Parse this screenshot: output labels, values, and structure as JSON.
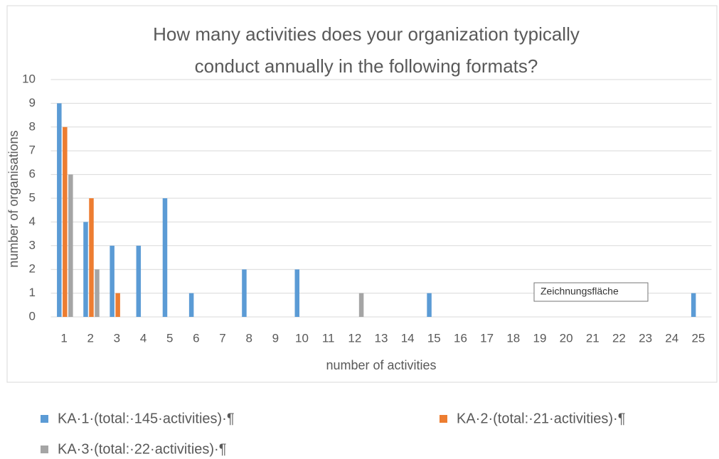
{
  "chart_data": {
    "type": "bar",
    "title": [
      "How many activities does your organization typically",
      "conduct annually in the following formats?"
    ],
    "x_label": "number of activities",
    "y_label": "number of organisations",
    "categories": [
      "1",
      "2",
      "3",
      "4",
      "5",
      "6",
      "7",
      "8",
      "9",
      "10",
      "11",
      "12",
      "13",
      "14",
      "15",
      "16",
      "17",
      "18",
      "19",
      "20",
      "21",
      "22",
      "23",
      "24",
      "25"
    ],
    "series": [
      {
        "name": "KA·1·(total:·145·activities)·¶",
        "color": "#5b9bd5",
        "values": [
          9,
          4,
          3,
          3,
          5,
          1,
          0,
          2,
          0,
          2,
          0,
          0,
          0,
          0,
          1,
          0,
          0,
          0,
          0,
          0,
          0,
          0,
          0,
          0,
          1
        ]
      },
      {
        "name": "KA·2·(total:·21·activities)·¶",
        "color": "#ed7d31",
        "values": [
          8,
          5,
          1,
          0,
          0,
          0,
          0,
          0,
          0,
          0,
          0,
          0,
          0,
          0,
          0,
          0,
          0,
          0,
          0,
          0,
          0,
          0,
          0,
          0,
          0
        ]
      },
      {
        "name": "KA·3·(total:·22·activities)·¶",
        "color": "#a5a5a5",
        "values": [
          6,
          2,
          0,
          0,
          0,
          0,
          0,
          0,
          0,
          0,
          0,
          1,
          0,
          0,
          0,
          0,
          0,
          0,
          0,
          0,
          0,
          0,
          0,
          0,
          0
        ]
      }
    ],
    "ylim": [
      0,
      10
    ],
    "yticks": [
      0,
      1,
      2,
      3,
      4,
      5,
      6,
      7,
      8,
      9,
      10
    ],
    "grid": true,
    "tooltip": "Zeichnungsfläche"
  }
}
